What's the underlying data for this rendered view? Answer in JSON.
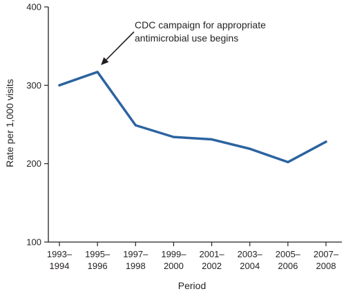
{
  "chart_data": {
    "type": "line",
    "title": "",
    "xlabel": "Period",
    "ylabel": "Rate per 1,000 visits",
    "ylim": [
      100,
      400
    ],
    "yticks": [
      100,
      200,
      300,
      400
    ],
    "grid": false,
    "categories": [
      [
        "1993–",
        "1994"
      ],
      [
        "1995–",
        "1996"
      ],
      [
        "1997–",
        "1998"
      ],
      [
        "1999–",
        "2000"
      ],
      [
        "2001–",
        "2002"
      ],
      [
        "2003–",
        "2004"
      ],
      [
        "2005–",
        "2006"
      ],
      [
        "2007–",
        "2008"
      ]
    ],
    "series": [
      {
        "values": [
          300,
          317,
          249,
          234,
          231,
          219,
          202,
          228
        ],
        "color": "#2b63a0"
      }
    ],
    "annotation": {
      "lines": [
        "CDC campaign for appropriate",
        "antimicrobial use begins"
      ],
      "points_to_category_index": 1
    }
  }
}
